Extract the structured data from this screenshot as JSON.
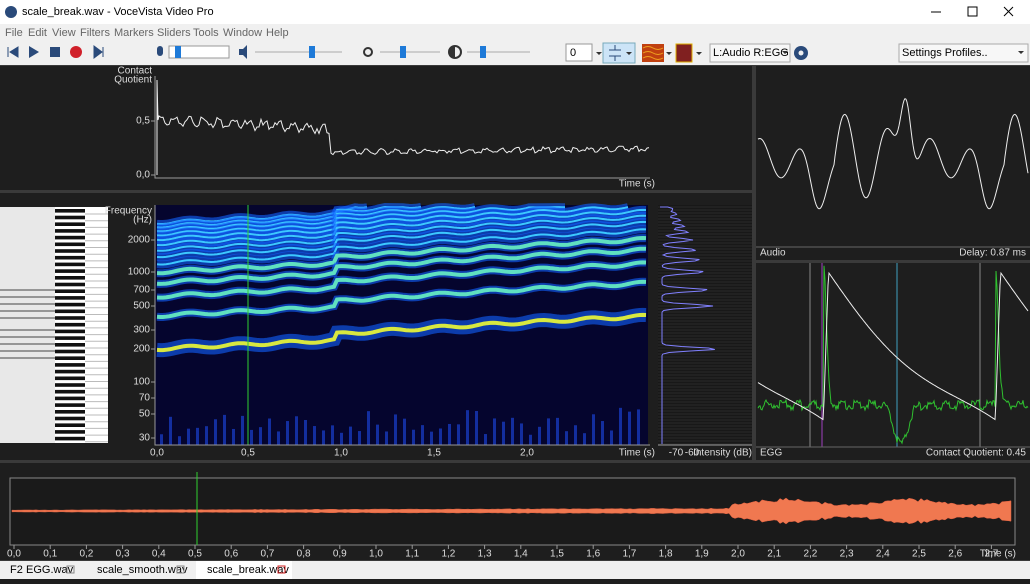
{
  "window": {
    "title": "scale_break.wav - VoceVista Video Pro",
    "menu": [
      "File",
      "Edit",
      "View",
      "Filters",
      "Markers",
      "Sliders",
      "Tools",
      "Window",
      "Help"
    ]
  },
  "toolbar": {
    "spin_value": "0",
    "channels": "L:Audio R:EGG",
    "profiles": "Settings Profiles.."
  },
  "contact_quotient_panel": {
    "y_label": [
      "Contact",
      "Quotient"
    ],
    "y_ticks": [
      "0,5",
      "0,0"
    ],
    "x_label": "Time (s)"
  },
  "spectrogram_panel": {
    "y_label": [
      "Frequency",
      "(Hz)"
    ],
    "y_ticks": [
      "2000",
      "1000",
      "700",
      "500",
      "300",
      "200",
      "100",
      "70",
      "50",
      "30"
    ],
    "x_ticks": [
      "0,0",
      "0,5",
      "1,0",
      "1,5",
      "2,0"
    ],
    "x_label": "Time (s)"
  },
  "spectrum_panel": {
    "x_ticks": [
      "-70",
      "-60"
    ],
    "x_label": "Intensity (dB)"
  },
  "audio_panel": {
    "label": "Audio",
    "delay": "Delay: 0.87 ms"
  },
  "egg_panel": {
    "label": "EGG",
    "contact_quotient": "Contact Quotient: 0.45"
  },
  "waveform_panel": {
    "x_ticks": [
      "0,0",
      "0,1",
      "0,2",
      "0,3",
      "0,4",
      "0,5",
      "0,6",
      "0,7",
      "0,8",
      "0,9",
      "1,0",
      "1,1",
      "1,2",
      "1,3",
      "1,4",
      "1,5",
      "1,6",
      "1,7",
      "1,8",
      "1,9",
      "2,0",
      "2,1",
      "2,2",
      "2,3",
      "2,4",
      "2,5",
      "2,6",
      "2,7"
    ],
    "x_label": "Time (s)"
  },
  "tabs": [
    "F2",
    "EGG.wav",
    "scale_smooth.wav",
    "scale_break.wav"
  ]
}
